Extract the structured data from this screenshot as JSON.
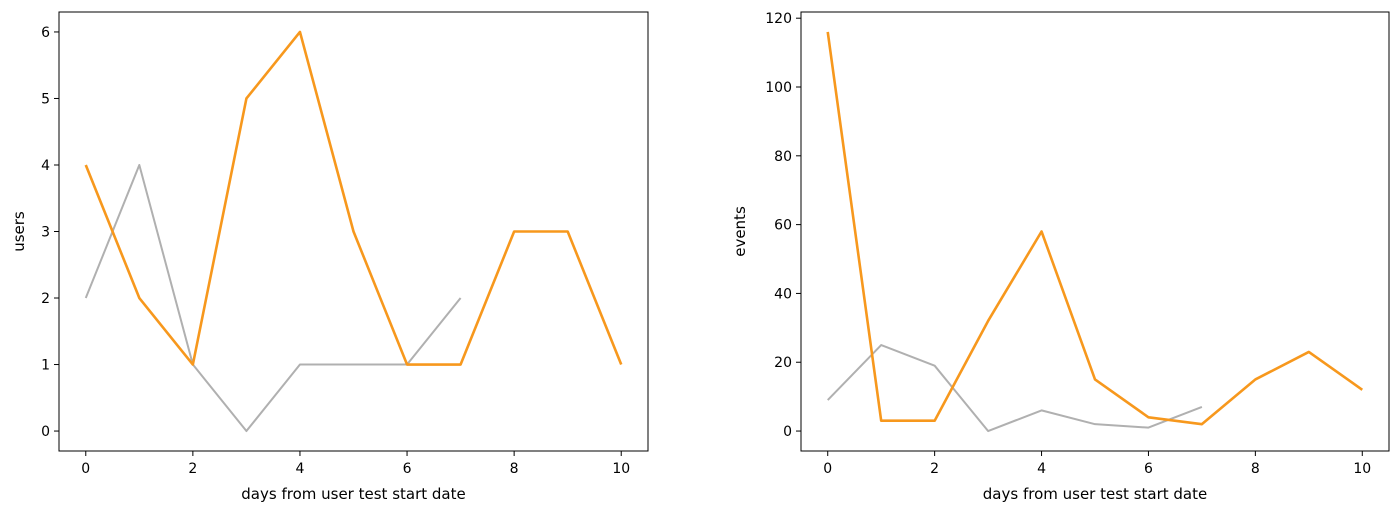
{
  "chart_data": [
    {
      "type": "line",
      "title": "",
      "xlabel": "days from user test start date",
      "ylabel": "users",
      "xlim": [
        -0.5,
        10.5
      ],
      "ylim": [
        -0.3,
        6.3
      ],
      "xticks": [
        0,
        2,
        4,
        6,
        8,
        10
      ],
      "yticks": [
        0,
        1,
        2,
        3,
        4,
        5,
        6
      ],
      "grid": false,
      "series": [
        {
          "color": "#b0b0b0",
          "x": [
            0,
            1,
            2,
            3,
            4,
            5,
            6,
            7
          ],
          "values": [
            2,
            4,
            1,
            0,
            1,
            1,
            1,
            2
          ]
        },
        {
          "color": "#f7981d",
          "x": [
            0,
            1,
            2,
            3,
            4,
            5,
            6,
            7,
            8,
            9,
            10
          ],
          "values": [
            4,
            2,
            1,
            5,
            6,
            3,
            1,
            1,
            3,
            3,
            1
          ]
        }
      ]
    },
    {
      "type": "line",
      "title": "",
      "xlabel": "days from user test start date",
      "ylabel": "events",
      "xlim": [
        -0.5,
        10.5
      ],
      "ylim": [
        -5.8,
        121.8
      ],
      "xticks": [
        0,
        2,
        4,
        6,
        8,
        10
      ],
      "yticks": [
        0,
        20,
        40,
        60,
        80,
        100,
        120
      ],
      "grid": false,
      "series": [
        {
          "color": "#b0b0b0",
          "x": [
            0,
            1,
            2,
            3,
            4,
            5,
            6,
            7
          ],
          "values": [
            9,
            25,
            19,
            0,
            6,
            2,
            1,
            7
          ]
        },
        {
          "color": "#f7981d",
          "x": [
            0,
            1,
            2,
            3,
            4,
            5,
            6,
            7,
            8,
            9,
            10
          ],
          "values": [
            116,
            3,
            3,
            32,
            58,
            15,
            4,
            2,
            15,
            23,
            12
          ]
        }
      ]
    }
  ]
}
